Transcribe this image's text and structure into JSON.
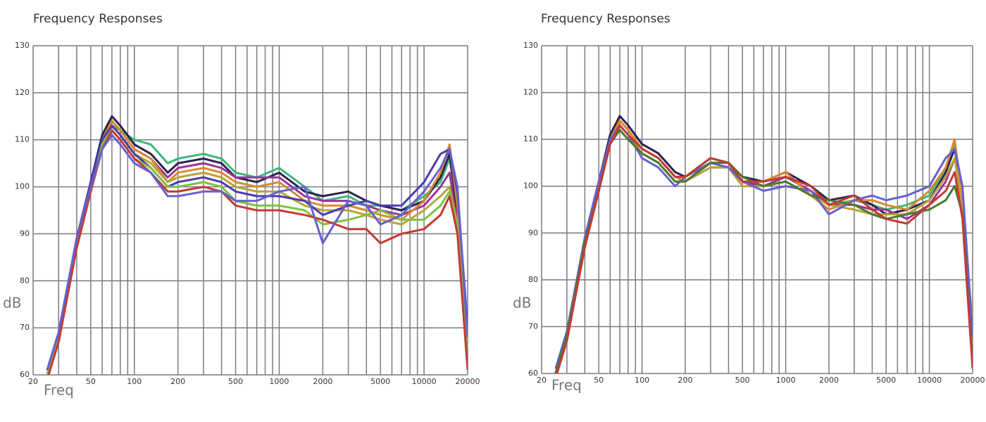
{
  "chart_data": [
    {
      "type": "line",
      "title": "Frequency Responses",
      "xlabel": "Freq",
      "ylabel": "dB",
      "log_x": true,
      "grid": true,
      "xlim": [
        20,
        20000
      ],
      "ylim": [
        60,
        130
      ],
      "xticks": [
        20,
        50,
        100,
        200,
        500,
        1000,
        2000,
        5000,
        10000,
        20000
      ],
      "xminor": [
        30,
        40,
        60,
        70,
        80,
        90,
        300,
        400,
        600,
        700,
        800,
        900,
        3000,
        4000,
        6000,
        7000,
        8000,
        9000
      ],
      "yticks": [
        60,
        70,
        80,
        90,
        100,
        110,
        120,
        130
      ],
      "x": [
        25,
        30,
        40,
        50,
        60,
        70,
        80,
        100,
        130,
        170,
        200,
        300,
        400,
        500,
        700,
        1000,
        1500,
        2000,
        3000,
        4000,
        5000,
        7000,
        10000,
        13000,
        15000,
        17000,
        20000
      ],
      "series": [
        {
          "color": "#3cb878",
          "values": [
            59,
            67,
            87,
            99,
            109,
            113,
            112,
            110,
            109,
            105,
            106,
            107,
            106,
            103,
            102,
            104,
            100,
            97,
            98,
            96,
            96,
            95,
            98,
            101,
            106,
            96,
            68
          ]
        },
        {
          "color": "#2b2350",
          "values": [
            60,
            68,
            89,
            101,
            111,
            115,
            113,
            109,
            107,
            103,
            105,
            106,
            105,
            102,
            101,
            103,
            99,
            98,
            99,
            97,
            96,
            95,
            97,
            102,
            107,
            94,
            66
          ]
        },
        {
          "color": "#9a3596",
          "values": [
            60,
            68,
            88,
            100,
            110,
            114,
            112,
            108,
            106,
            102,
            104,
            105,
            104,
            102,
            102,
            102,
            98,
            97,
            97,
            96,
            95,
            94,
            96,
            100,
            103,
            92,
            62
          ]
        },
        {
          "color": "#d98a2b",
          "values": [
            59,
            67,
            87,
            99,
            110,
            114,
            112,
            108,
            106,
            101,
            103,
            104,
            103,
            101,
            100,
            101,
            97,
            96,
            96,
            95,
            94,
            93,
            97,
            103,
            109,
            96,
            69
          ]
        },
        {
          "color": "#b7a33a",
          "values": [
            60,
            68,
            87,
            99,
            109,
            113,
            111,
            107,
            105,
            101,
            102,
            103,
            102,
            100,
            99,
            99,
            96,
            95,
            95,
            94,
            93,
            92,
            95,
            98,
            100,
            92,
            65
          ]
        },
        {
          "color": "#4b3cb0",
          "values": [
            61,
            69,
            89,
            101,
            110,
            113,
            111,
            107,
            104,
            100,
            101,
            102,
            101,
            99,
            98,
            98,
            97,
            94,
            96,
            97,
            96,
            96,
            101,
            107,
            108,
            99,
            70
          ]
        },
        {
          "color": "#7cc242",
          "values": [
            60,
            68,
            88,
            99,
            109,
            112,
            110,
            106,
            104,
            100,
            100,
            101,
            100,
            97,
            96,
            96,
            95,
            92,
            93,
            94,
            95,
            93,
            93,
            96,
            99,
            91,
            64
          ]
        },
        {
          "color": "#c43a32",
          "values": [
            59,
            67,
            87,
            99,
            108,
            112,
            110,
            106,
            103,
            99,
            99,
            100,
            99,
            96,
            95,
            95,
            94,
            93,
            91,
            91,
            88,
            90,
            91,
            94,
            98,
            90,
            61
          ]
        },
        {
          "color": "#6660d0",
          "values": [
            61,
            69,
            89,
            100,
            108,
            111,
            109,
            105,
            103,
            98,
            98,
            99,
            99,
            97,
            97,
            99,
            100,
            88,
            97,
            96,
            92,
            94,
            99,
            104,
            108,
            100,
            68
          ]
        }
      ]
    },
    {
      "type": "line",
      "title": "Frequency Responses",
      "xlabel": "Freq",
      "ylabel": "dB",
      "log_x": true,
      "grid": true,
      "xlim": [
        20,
        20000
      ],
      "ylim": [
        60,
        130
      ],
      "xticks": [
        20,
        50,
        100,
        200,
        500,
        1000,
        2000,
        5000,
        10000,
        20000
      ],
      "xminor": [
        30,
        40,
        60,
        70,
        80,
        90,
        300,
        400,
        600,
        700,
        800,
        900,
        3000,
        4000,
        6000,
        7000,
        8000,
        9000
      ],
      "yticks": [
        60,
        70,
        80,
        90,
        100,
        110,
        120,
        130
      ],
      "x": [
        25,
        30,
        40,
        50,
        60,
        70,
        80,
        100,
        130,
        170,
        200,
        300,
        400,
        500,
        700,
        1000,
        1500,
        2000,
        3000,
        4000,
        5000,
        7000,
        10000,
        13000,
        15000,
        17000,
        20000
      ],
      "series": [
        {
          "color": "#3cb878",
          "values": [
            60,
            68,
            88,
            100,
            110,
            114,
            112,
            108,
            106,
            102,
            102,
            105,
            105,
            101,
            100,
            102,
            99,
            96,
            97,
            96,
            95,
            96,
            98,
            104,
            109,
            99,
            68
          ]
        },
        {
          "color": "#2b2350",
          "values": [
            60,
            68,
            89,
            101,
            111,
            115,
            113,
            109,
            107,
            103,
            102,
            106,
            105,
            102,
            101,
            103,
            100,
            97,
            98,
            96,
            94,
            95,
            97,
            103,
            108,
            98,
            66
          ]
        },
        {
          "color": "#9a3596",
          "values": [
            59,
            67,
            87,
            99,
            110,
            114,
            112,
            108,
            106,
            102,
            101,
            105,
            104,
            101,
            100,
            102,
            99,
            96,
            96,
            95,
            95,
            93,
            96,
            101,
            106,
            96,
            63
          ]
        },
        {
          "color": "#d98a2b",
          "values": [
            60,
            68,
            88,
            100,
            110,
            114,
            112,
            108,
            106,
            102,
            101,
            104,
            104,
            101,
            101,
            103,
            98,
            95,
            97,
            97,
            96,
            95,
            99,
            104,
            110,
            97,
            70
          ]
        },
        {
          "color": "#b7a33a",
          "values": [
            59,
            67,
            87,
            99,
            109,
            113,
            111,
            107,
            105,
            101,
            101,
            104,
            104,
            100,
            100,
            101,
            98,
            96,
            95,
            94,
            94,
            94,
            97,
            102,
            106,
            95,
            64
          ]
        },
        {
          "color": "#6660d0",
          "values": [
            61,
            69,
            89,
            101,
            110,
            113,
            111,
            106,
            104,
            100,
            102,
            105,
            104,
            101,
            99,
            100,
            99,
            94,
            97,
            98,
            97,
            98,
            100,
            106,
            108,
            100,
            68
          ]
        },
        {
          "color": "#4a7a2a",
          "values": [
            60,
            68,
            88,
            99,
            109,
            112,
            110,
            107,
            105,
            101,
            101,
            105,
            105,
            102,
            100,
            101,
            98,
            97,
            96,
            94,
            93,
            94,
            95,
            97,
            100,
            94,
            62
          ]
        },
        {
          "color": "#c43a32",
          "values": [
            59,
            67,
            87,
            99,
            109,
            113,
            111,
            108,
            106,
            102,
            102,
            106,
            105,
            101,
            101,
            102,
            100,
            96,
            98,
            95,
            93,
            92,
            96,
            99,
            103,
            93,
            61
          ]
        }
      ]
    }
  ]
}
